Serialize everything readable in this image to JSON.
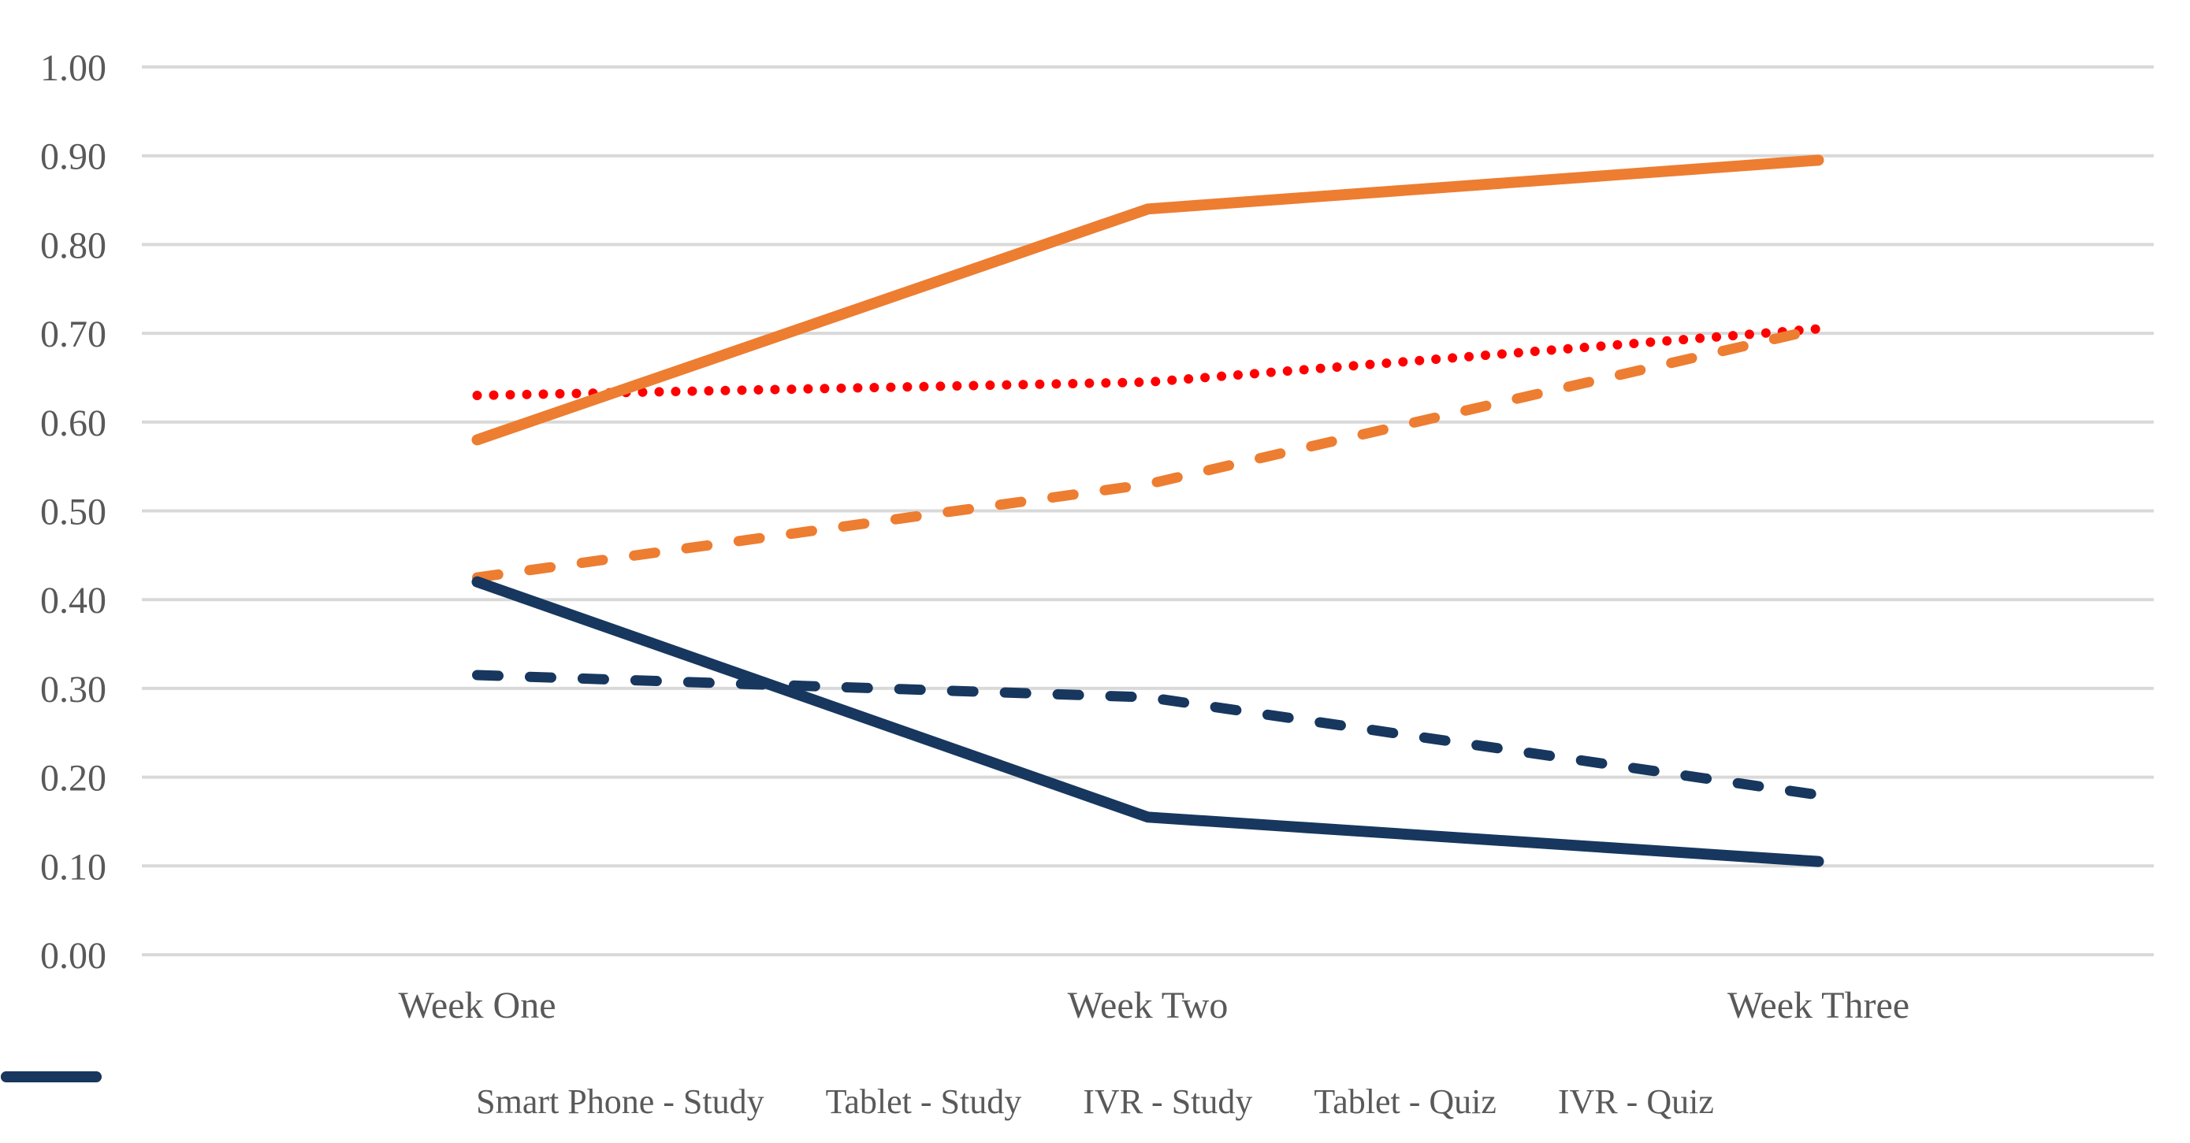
{
  "chart": {
    "background": "#FFFFFF",
    "text_color": "#595959",
    "gridline_color": "#D9D9D9"
  },
  "chart_data": {
    "type": "line",
    "title": "",
    "xlabel": "",
    "ylabel": "",
    "categories": [
      "Week One",
      "Week Two",
      "Week Three"
    ],
    "series": [
      {
        "name": "Smart Phone - Study",
        "values": [
          0.63,
          0.645,
          0.705
        ],
        "color": "#FF0000",
        "style": "dotted"
      },
      {
        "name": "Tablet - Study",
        "values": [
          0.425,
          0.53,
          0.705
        ],
        "color": "#ED7D31",
        "style": "dashed"
      },
      {
        "name": "IVR - Study",
        "values": [
          0.315,
          0.29,
          0.18
        ],
        "color": "#17375E",
        "style": "dashed"
      },
      {
        "name": "Tablet - Quiz",
        "values": [
          0.58,
          0.84,
          0.895
        ],
        "color": "#ED7D31",
        "style": "solid"
      },
      {
        "name": "IVR - Quiz",
        "values": [
          0.42,
          0.155,
          0.105
        ],
        "color": "#17375E",
        "style": "solid"
      }
    ],
    "ylim": [
      0.0,
      1.0
    ],
    "ytick_step": 0.1,
    "y_ticks": [
      "1.00",
      "0.90",
      "0.80",
      "0.70",
      "0.60",
      "0.50",
      "0.40",
      "0.30",
      "0.20",
      "0.10",
      "0.00"
    ],
    "grid": "horizontal",
    "legend_position": "bottom"
  }
}
